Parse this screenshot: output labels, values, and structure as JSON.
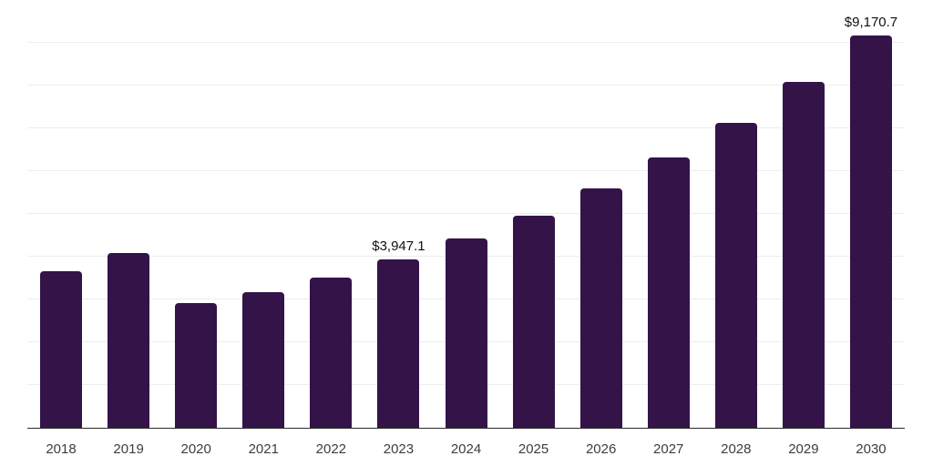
{
  "chart_data": {
    "type": "bar",
    "title": "",
    "xlabel": "",
    "ylabel": "",
    "categories": [
      "2018",
      "2019",
      "2020",
      "2021",
      "2022",
      "2023",
      "2024",
      "2025",
      "2026",
      "2027",
      "2028",
      "2029",
      "2030"
    ],
    "values": [
      3650,
      4080,
      2920,
      3160,
      3520,
      3947.1,
      4430,
      4960,
      5600,
      6320,
      7120,
      8080,
      9170.7
    ],
    "point_labels": [
      "",
      "",
      "",
      "",
      "",
      "$3,947.1",
      "",
      "",
      "",
      "",
      "",
      "",
      "$9,170.7"
    ],
    "ylim": [
      0,
      10000
    ],
    "grid_step": 1000,
    "grid_on": true,
    "legend": "none",
    "bar_color": "#341349",
    "gridline_color": "#ededed",
    "axis_line_color": "#2b2b2b",
    "tick_label_color": "#3d3d3d",
    "value_label_color": "#111111"
  }
}
